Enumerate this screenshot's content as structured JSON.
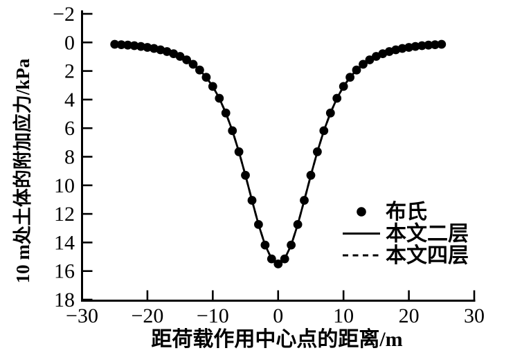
{
  "figure": {
    "background": "#ffffff",
    "ink": "#000000"
  },
  "chart_data": {
    "type": "line+scatter",
    "title": "",
    "xlabel": "距荷载作用中心点的距离/m",
    "ylabel": "10 m处土体的附加应力/kPa",
    "xlim": [
      -30,
      30
    ],
    "ylim": [
      -2,
      18
    ],
    "y_axis_inverted": true,
    "grid": false,
    "x_ticks": [
      "−30",
      "−20",
      "−10",
      "0",
      "10",
      "20",
      "30"
    ],
    "y_ticks": [
      "−2",
      "0",
      "2",
      "4",
      "6",
      "8",
      "10",
      "12",
      "14",
      "16",
      "18"
    ],
    "legend": {
      "position": "center-right",
      "items": [
        {
          "label": "布氏",
          "marker": "filled-circle",
          "color": "#000000"
        },
        {
          "label": "本文二层",
          "line": "solid",
          "color": "#000000"
        },
        {
          "label": "本文四层",
          "line": "dashed",
          "color": "#000000"
        }
      ]
    },
    "x": [
      -25,
      -24,
      -23,
      -22,
      -21,
      -20,
      -19,
      -18,
      -17,
      -16,
      -15,
      -14,
      -13,
      -12,
      -11,
      -10,
      -9,
      -8,
      -7,
      -6,
      -5,
      -4,
      -3,
      -2,
      -1,
      0,
      1,
      2,
      3,
      4,
      5,
      6,
      7,
      8,
      9,
      10,
      11,
      12,
      13,
      14,
      15,
      16,
      17,
      18,
      19,
      20,
      21,
      22,
      23,
      24,
      25
    ],
    "series": [
      {
        "name": "布氏",
        "type": "scatter",
        "values": [
          0.13,
          0.16,
          0.19,
          0.23,
          0.28,
          0.35,
          0.42,
          0.52,
          0.64,
          0.79,
          0.98,
          1.22,
          1.53,
          1.93,
          2.44,
          3.08,
          3.91,
          4.94,
          6.18,
          7.65,
          9.3,
          11.05,
          12.74,
          14.18,
          15.15,
          15.5,
          15.15,
          14.18,
          12.74,
          11.05,
          9.3,
          7.65,
          6.18,
          4.94,
          3.91,
          3.08,
          2.44,
          1.93,
          1.53,
          1.22,
          0.98,
          0.79,
          0.64,
          0.52,
          0.42,
          0.35,
          0.28,
          0.23,
          0.19,
          0.16,
          0.13
        ]
      },
      {
        "name": "本文二层",
        "type": "line",
        "style": "solid",
        "values": [
          0.13,
          0.16,
          0.19,
          0.23,
          0.28,
          0.35,
          0.42,
          0.52,
          0.64,
          0.79,
          0.98,
          1.22,
          1.53,
          1.93,
          2.44,
          3.08,
          3.91,
          4.94,
          6.18,
          7.65,
          9.3,
          11.05,
          12.74,
          14.18,
          15.15,
          15.5,
          15.15,
          14.18,
          12.74,
          11.05,
          9.3,
          7.65,
          6.18,
          4.94,
          3.91,
          3.08,
          2.44,
          1.93,
          1.53,
          1.22,
          0.98,
          0.79,
          0.64,
          0.52,
          0.42,
          0.35,
          0.28,
          0.23,
          0.19,
          0.16,
          0.13
        ]
      },
      {
        "name": "本文四层",
        "type": "line",
        "style": "dashed",
        "values": [
          0.13,
          0.16,
          0.19,
          0.23,
          0.28,
          0.35,
          0.42,
          0.52,
          0.64,
          0.79,
          0.98,
          1.22,
          1.53,
          1.93,
          2.44,
          3.08,
          3.91,
          4.94,
          6.18,
          7.65,
          9.3,
          11.05,
          12.74,
          14.18,
          15.15,
          15.5,
          15.15,
          14.18,
          12.74,
          11.05,
          9.3,
          7.65,
          6.18,
          4.94,
          3.91,
          3.08,
          2.44,
          1.93,
          1.53,
          1.22,
          0.98,
          0.79,
          0.64,
          0.52,
          0.42,
          0.35,
          0.28,
          0.23,
          0.19,
          0.16,
          0.13
        ]
      }
    ]
  }
}
